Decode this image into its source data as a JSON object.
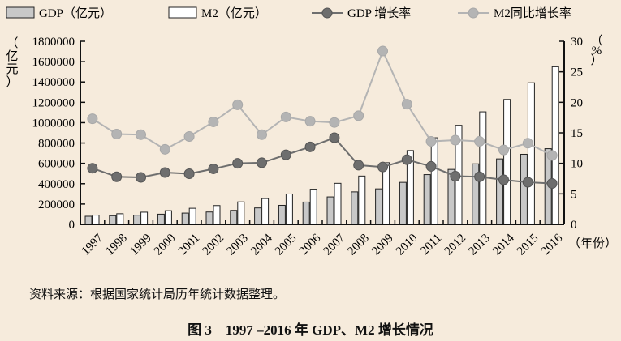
{
  "chart_data": {
    "type": "bar+line",
    "categories": [
      "1997",
      "1998",
      "1999",
      "2000",
      "2001",
      "2002",
      "2003",
      "2004",
      "2005",
      "2006",
      "2007",
      "2008",
      "2009",
      "2010",
      "2011",
      "2012",
      "2013",
      "2014",
      "2015",
      "2016"
    ],
    "series": [
      {
        "name": "GDP（亿元）",
        "type": "bar",
        "axis": "left",
        "color": "#c8c8c8",
        "values": [
          79715,
          85196,
          90564,
          100280,
          110863,
          121717,
          137422,
          161840,
          187319,
          219439,
          270232,
          319516,
          349081,
          413030,
          489301,
          540367,
          595244,
          643974,
          689052,
          744127
        ]
      },
      {
        "name": "M2（亿元）",
        "type": "bar",
        "axis": "left",
        "color": "#ffffff",
        "values": [
          90995,
          104499,
          119898,
          134610,
          158302,
          185007,
          221223,
          254107,
          298756,
          345578,
          403442,
          475167,
          606225,
          725852,
          851591,
          974149,
          1106525,
          1228375,
          1392278,
          1550067
        ]
      },
      {
        "name": "GDP 增长率",
        "type": "line",
        "axis": "right",
        "color": "#6e6e6e",
        "values": [
          9.2,
          7.8,
          7.7,
          8.5,
          8.3,
          9.1,
          10.0,
          10.1,
          11.4,
          12.7,
          14.2,
          9.7,
          9.4,
          10.6,
          9.5,
          7.9,
          7.8,
          7.3,
          6.9,
          6.7
        ]
      },
      {
        "name": "M2同比增长率",
        "type": "line",
        "axis": "right",
        "color": "#b4b4b4",
        "values": [
          17.3,
          14.8,
          14.7,
          12.3,
          14.4,
          16.8,
          19.6,
          14.7,
          17.6,
          16.9,
          16.7,
          17.8,
          28.4,
          19.7,
          13.6,
          13.8,
          13.6,
          12.2,
          13.3,
          11.3
        ]
      }
    ],
    "ylim_left": [
      0,
      1800000
    ],
    "yticks_left": [
      "0",
      "200000",
      "400000",
      "600000",
      "800000",
      "1000000",
      "1200000",
      "1400000",
      "1600000",
      "1800000"
    ],
    "ylim_right": [
      0,
      30
    ],
    "yticks_right": [
      "0",
      "5",
      "10",
      "15",
      "20",
      "25",
      "30"
    ],
    "ylabel_left": "（亿元）",
    "ylabel_right": "（%）",
    "xlabel": "（年份）",
    "legend": "top",
    "grid": false
  },
  "source_note": "资料来源：根据国家统计局历年统计数据整理。",
  "caption": "图 3　1997 –2016 年 GDP、M2 增长情况"
}
